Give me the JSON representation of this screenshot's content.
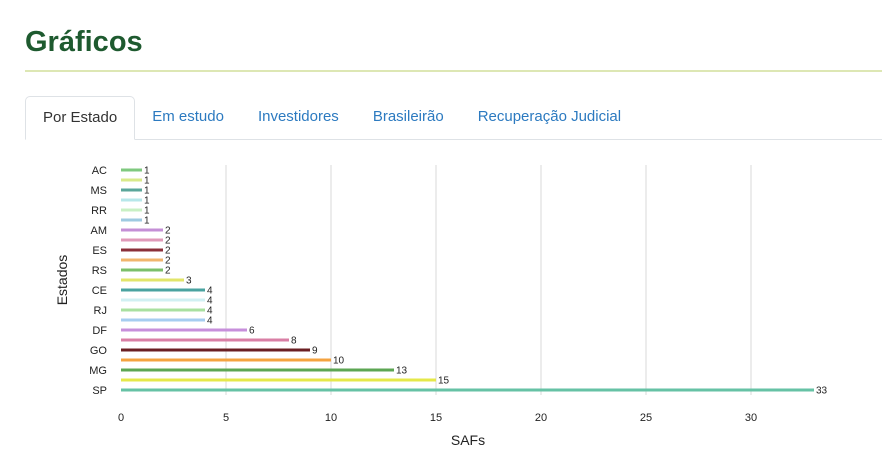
{
  "page": {
    "title": "Gráficos"
  },
  "tabs": [
    {
      "label": "Por Estado",
      "active": true
    },
    {
      "label": "Em estudo",
      "active": false
    },
    {
      "label": "Investidores",
      "active": false
    },
    {
      "label": "Brasileirão",
      "active": false
    },
    {
      "label": "Recuperação Judicial",
      "active": false
    }
  ],
  "chart_data": {
    "type": "bar",
    "orientation": "horizontal",
    "xlabel": "SAFs",
    "ylabel": "Estados",
    "xlim": [
      0,
      33
    ],
    "xticks": [
      0,
      5,
      10,
      15,
      20,
      25,
      30
    ],
    "grid": true,
    "categories": [
      "AC",
      "",
      "MS",
      "",
      "RR",
      "",
      "AM",
      "",
      "ES",
      "",
      "RS",
      "",
      "CE",
      "",
      "RJ",
      "",
      "DF",
      "",
      "GO",
      "",
      "MG",
      "",
      "SP"
    ],
    "values": [
      1,
      1,
      1,
      1,
      1,
      1,
      2,
      2,
      2,
      2,
      2,
      3,
      4,
      4,
      4,
      4,
      6,
      8,
      9,
      10,
      13,
      15,
      33
    ],
    "colors": [
      "#7fc97f",
      "#d9ea8a",
      "#5aa69a",
      "#b7e7ea",
      "#c9f0c4",
      "#9ecae1",
      "#c48fd6",
      "#e09ab9",
      "#8b2f3a",
      "#f1b56d",
      "#7bbf6a",
      "#e2e56a",
      "#4aa3a0",
      "#d1f0f3",
      "#a9e0a0",
      "#a6cdf0",
      "#c78fdb",
      "#d97fa5",
      "#6b1f23",
      "#f4a340",
      "#5ca653",
      "#e5e84a",
      "#66c2a5"
    ]
  }
}
